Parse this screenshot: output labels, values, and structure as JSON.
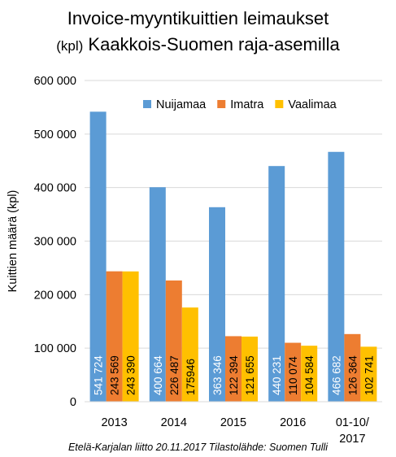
{
  "chart_data": {
    "type": "bar",
    "title_line1": "Invoice-myyntikuittien leimaukset",
    "title_line2_unit": "(kpl)",
    "title_line2_rest": "Kaakkois-Suomen raja-asemilla",
    "ylabel": "Kuittien määrä (kpl)",
    "xlabel": "",
    "ylim": [
      0,
      600000
    ],
    "yticks": [
      0,
      100000,
      200000,
      300000,
      400000,
      500000,
      600000
    ],
    "ytick_labels": [
      "0",
      "100 000",
      "200 000",
      "300 000",
      "400 000",
      "500 000",
      "600 000"
    ],
    "grid": true,
    "legend_position": "top-right",
    "categories": [
      "2013",
      "2014",
      "2015",
      "2016",
      "01-10/ 2017"
    ],
    "category_lines": [
      [
        "2013"
      ],
      [
        "2014"
      ],
      [
        "2015"
      ],
      [
        "2016"
      ],
      [
        "01-10/",
        "2017"
      ]
    ],
    "series": [
      {
        "name": "Nuijamaa",
        "color": "#5B9BD5",
        "label_color": "#ffffff",
        "values": [
          541724,
          400664,
          363346,
          440231,
          466682
        ],
        "labels": [
          "541 724",
          "400 664",
          "363 346",
          "440 231",
          "466 682"
        ]
      },
      {
        "name": "Imatra",
        "color": "#ED7D31",
        "label_color": "#000000",
        "values": [
          243569,
          226487,
          122394,
          110074,
          126364
        ],
        "labels": [
          "243 569",
          "226 487",
          "122 394",
          "110 074",
          "126 364"
        ]
      },
      {
        "name": "Vaalimaa",
        "color": "#FFC000",
        "label_color": "#000000",
        "values": [
          243390,
          175946,
          121655,
          104584,
          102741
        ],
        "labels": [
          "243 390",
          "175946",
          "121 655",
          "104 584",
          "102 741"
        ]
      }
    ],
    "source": "Etelä-Karjalan liitto 20.11.2017 Tilastolähde: Suomen Tulli"
  }
}
